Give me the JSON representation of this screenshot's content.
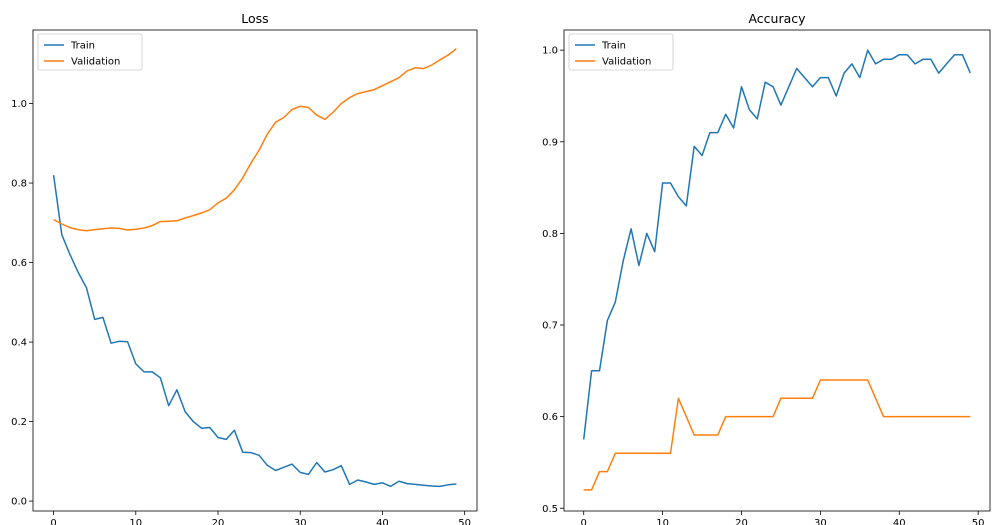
{
  "chart_data": [
    {
      "type": "line",
      "title": "Loss",
      "xlabel": "",
      "ylabel": "",
      "xlim": [
        -2.5,
        51.5
      ],
      "ylim": [
        -0.025,
        1.185
      ],
      "x_ticks": [
        0,
        10,
        20,
        30,
        40,
        50
      ],
      "x_tick_labels": [
        "0",
        "10",
        "20",
        "30",
        "40",
        "50"
      ],
      "y_ticks": [
        0.0,
        0.2,
        0.4,
        0.6,
        0.8,
        1.0
      ],
      "y_tick_labels": [
        "0.0",
        "0.2",
        "0.4",
        "0.6",
        "0.8",
        "1.0"
      ],
      "grid": false,
      "legend_position": "top-left",
      "x": [
        0,
        1,
        2,
        3,
        4,
        5,
        6,
        7,
        8,
        9,
        10,
        11,
        12,
        13,
        14,
        15,
        16,
        17,
        18,
        19,
        20,
        21,
        22,
        23,
        24,
        25,
        26,
        27,
        28,
        29,
        30,
        31,
        32,
        33,
        34,
        35,
        36,
        37,
        38,
        39,
        40,
        41,
        42,
        43,
        44,
        45,
        46,
        47,
        48,
        49
      ],
      "series": [
        {
          "name": "Train",
          "color": "#1f77b4",
          "values": [
            0.82,
            0.67,
            0.62,
            0.575,
            0.537,
            0.457,
            0.462,
            0.397,
            0.402,
            0.401,
            0.345,
            0.325,
            0.325,
            0.31,
            0.24,
            0.28,
            0.225,
            0.2,
            0.183,
            0.185,
            0.16,
            0.155,
            0.178,
            0.123,
            0.122,
            0.115,
            0.09,
            0.077,
            0.085,
            0.093,
            0.072,
            0.067,
            0.097,
            0.073,
            0.079,
            0.089,
            0.042,
            0.053,
            0.048,
            0.042,
            0.046,
            0.037,
            0.05,
            0.044,
            0.042,
            0.04,
            0.038,
            0.037,
            0.041,
            0.043
          ]
        },
        {
          "name": "Validation",
          "color": "#ff7f0e",
          "values": [
            0.708,
            0.697,
            0.688,
            0.683,
            0.68,
            0.683,
            0.685,
            0.687,
            0.686,
            0.682,
            0.684,
            0.687,
            0.693,
            0.703,
            0.704,
            0.705,
            0.712,
            0.718,
            0.725,
            0.733,
            0.75,
            0.762,
            0.783,
            0.813,
            0.85,
            0.883,
            0.923,
            0.953,
            0.965,
            0.985,
            0.993,
            0.99,
            0.971,
            0.96,
            0.978,
            1.0,
            1.015,
            1.025,
            1.03,
            1.035,
            1.045,
            1.055,
            1.065,
            1.082,
            1.09,
            1.088,
            1.097,
            1.11,
            1.122,
            1.138
          ]
        }
      ]
    },
    {
      "type": "line",
      "title": "Accuracy",
      "xlabel": "",
      "ylabel": "",
      "xlim": [
        -2.5,
        51.5
      ],
      "ylim": [
        0.497,
        1.022
      ],
      "x_ticks": [
        0,
        10,
        20,
        30,
        40,
        50
      ],
      "x_tick_labels": [
        "0",
        "10",
        "20",
        "30",
        "40",
        "50"
      ],
      "y_ticks": [
        0.5,
        0.6,
        0.7,
        0.8,
        0.9,
        1.0
      ],
      "y_tick_labels": [
        "0.5",
        "0.6",
        "0.7",
        "0.8",
        "0.9",
        "1.0"
      ],
      "grid": false,
      "legend_position": "top-left",
      "x": [
        0,
        1,
        2,
        3,
        4,
        5,
        6,
        7,
        8,
        9,
        10,
        11,
        12,
        13,
        14,
        15,
        16,
        17,
        18,
        19,
        20,
        21,
        22,
        23,
        24,
        25,
        26,
        27,
        28,
        29,
        30,
        31,
        32,
        33,
        34,
        35,
        36,
        37,
        38,
        39,
        40,
        41,
        42,
        43,
        44,
        45,
        46,
        47,
        48,
        49
      ],
      "series": [
        {
          "name": "Train",
          "color": "#1f77b4",
          "values": [
            0.575,
            0.65,
            0.65,
            0.705,
            0.725,
            0.77,
            0.805,
            0.765,
            0.8,
            0.78,
            0.855,
            0.855,
            0.84,
            0.83,
            0.895,
            0.885,
            0.91,
            0.91,
            0.93,
            0.915,
            0.96,
            0.935,
            0.925,
            0.965,
            0.96,
            0.94,
            0.96,
            0.98,
            0.97,
            0.96,
            0.97,
            0.97,
            0.95,
            0.975,
            0.985,
            0.97,
            1.0,
            0.985,
            0.99,
            0.99,
            0.995,
            0.995,
            0.985,
            0.99,
            0.99,
            0.975,
            0.985,
            0.995,
            0.995,
            0.975
          ]
        },
        {
          "name": "Validation",
          "color": "#ff7f0e",
          "values": [
            0.52,
            0.52,
            0.54,
            0.54,
            0.56,
            0.56,
            0.56,
            0.56,
            0.56,
            0.56,
            0.56,
            0.56,
            0.62,
            0.6,
            0.58,
            0.58,
            0.58,
            0.58,
            0.6,
            0.6,
            0.6,
            0.6,
            0.6,
            0.6,
            0.6,
            0.62,
            0.62,
            0.62,
            0.62,
            0.62,
            0.64,
            0.64,
            0.64,
            0.64,
            0.64,
            0.64,
            0.64,
            0.62,
            0.6,
            0.6,
            0.6,
            0.6,
            0.6,
            0.6,
            0.6,
            0.6,
            0.6,
            0.6,
            0.6,
            0.6
          ]
        }
      ]
    }
  ]
}
